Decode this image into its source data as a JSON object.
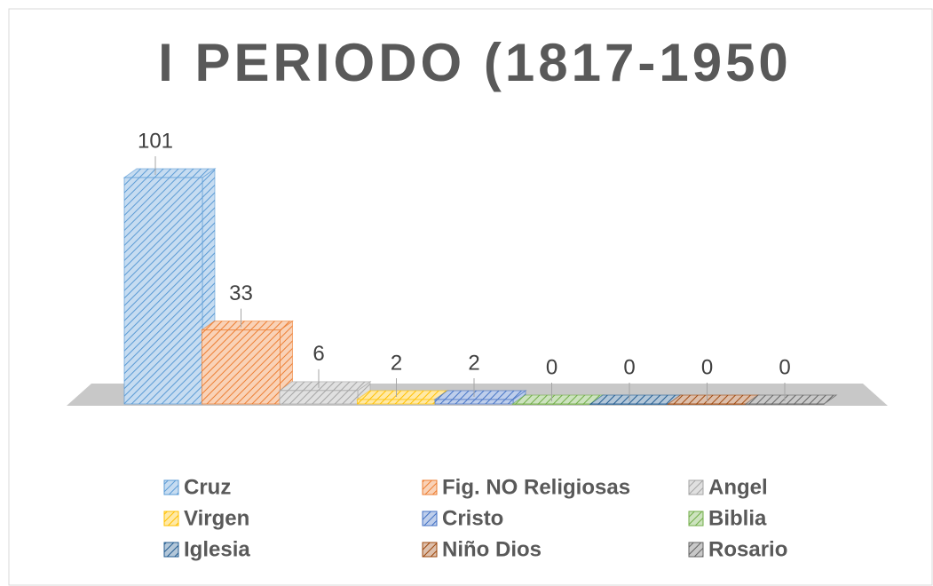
{
  "chart_data": {
    "type": "bar3d",
    "title": "I PERIODO (1817-1950",
    "series": [
      {
        "name": "Cruz",
        "color": "#5b9bd5",
        "values": [
          101
        ]
      },
      {
        "name": "Fig. NO Religiosas",
        "color": "#ed7d31",
        "values": [
          33
        ]
      },
      {
        "name": "Angel",
        "color": "#a5a5a5",
        "values": [
          6
        ]
      },
      {
        "name": "Virgen",
        "color": "#ffc000",
        "values": [
          2
        ]
      },
      {
        "name": "Cristo",
        "color": "#4472c4",
        "values": [
          2
        ]
      },
      {
        "name": "Biblia",
        "color": "#70ad47",
        "values": [
          0
        ]
      },
      {
        "name": "Iglesia",
        "color": "#255e91",
        "values": [
          0
        ]
      },
      {
        "name": "Niño Dios",
        "color": "#9e480e",
        "values": [
          0
        ]
      },
      {
        "name": "Rosario",
        "color": "#636363",
        "values": [
          0
        ]
      }
    ],
    "legend": "bottom"
  }
}
